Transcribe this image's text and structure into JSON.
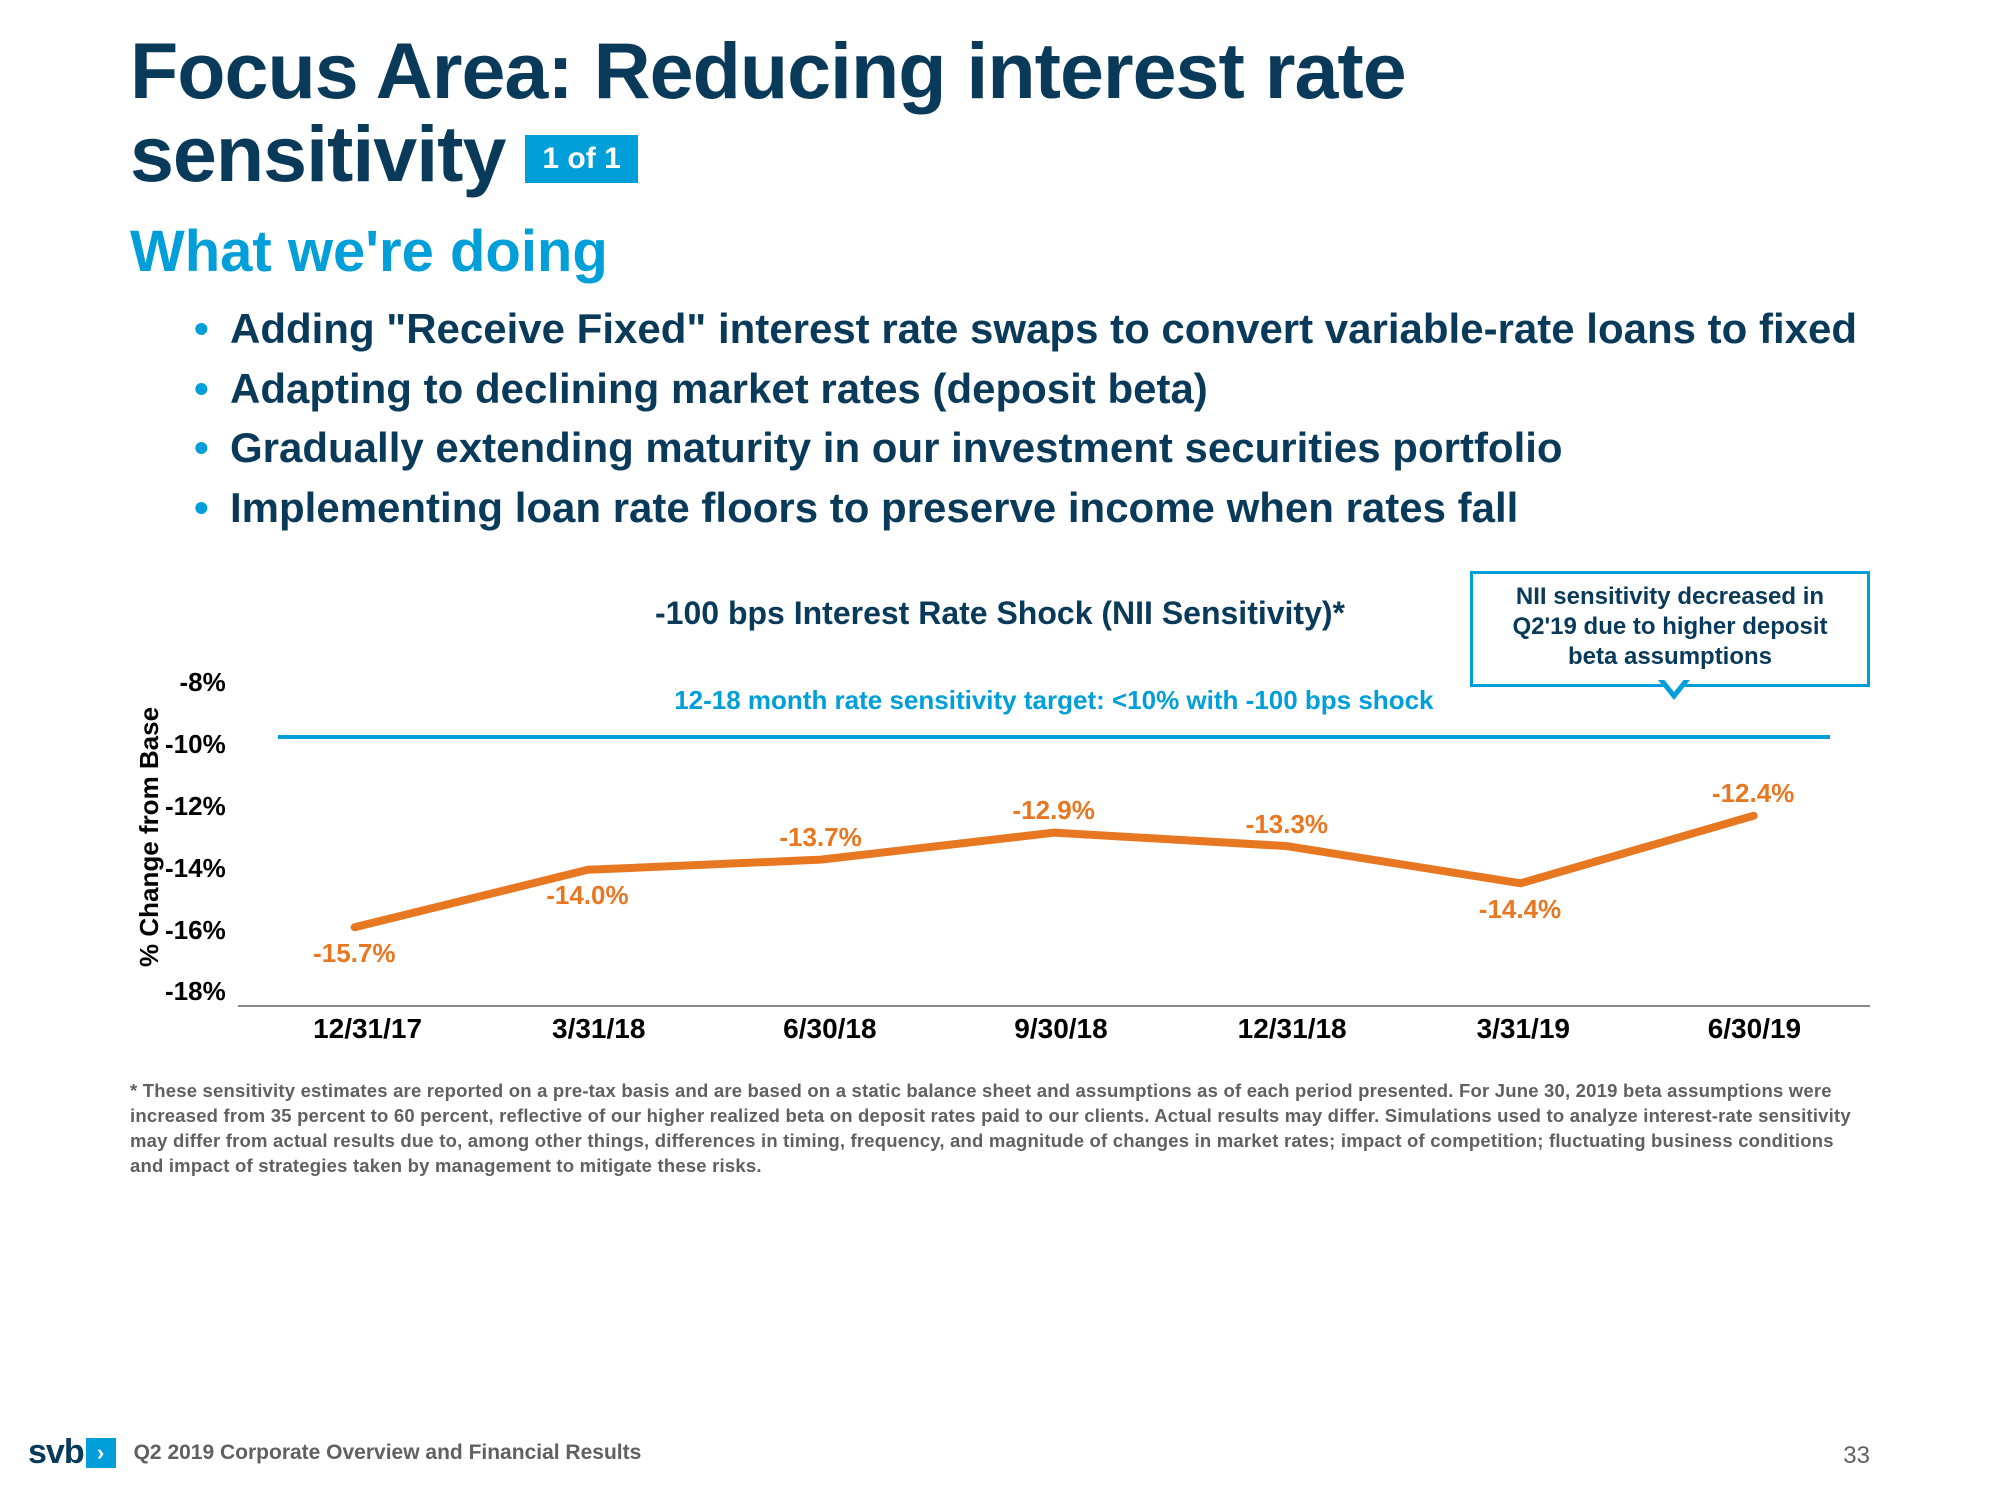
{
  "title_line1": "Focus Area: Reducing interest rate",
  "title_line2": "sensitivity",
  "badge": "1 of 1",
  "subtitle": "What we're doing",
  "bullets": [
    "Adding \"Receive Fixed\" interest rate swaps to convert variable-rate loans to fixed",
    "Adapting to declining market rates (deposit beta)",
    "Gradually extending maturity in our investment securities portfolio",
    "Implementing loan rate floors to preserve income when rates fall"
  ],
  "chart": {
    "title": "-100 bps Interest Rate Shock (NII Sensitivity)*",
    "callout": "NII sensitivity decreased in Q2'19 due to higher deposit beta assumptions",
    "ylabel": "% Change from Base",
    "yticks": [
      "-8%",
      "-10%",
      "-12%",
      "-14%",
      "-16%",
      "-18%"
    ],
    "ymin": -18,
    "ymax": -8,
    "target_text": "12-18 month rate sensitivity target: <10% with -100 bps shock",
    "target_value": -10,
    "xlabels": [
      "12/31/17",
      "3/31/18",
      "6/30/18",
      "9/30/18",
      "12/31/18",
      "3/31/19",
      "6/30/19"
    ],
    "values": [
      -15.7,
      -14.0,
      -13.7,
      -12.9,
      -13.3,
      -14.4,
      -12.4
    ],
    "data_labels": [
      "-15.7%",
      "-14.0%",
      "-13.7%",
      "-12.9%",
      "-13.3%",
      "-14.4%",
      "-12.4%"
    ],
    "line_color": "#e87722",
    "line_width": 8,
    "target_color": "#009fda",
    "label_below": [
      true,
      true,
      false,
      false,
      false,
      true,
      false
    ]
  },
  "footnote": "* These sensitivity estimates are reported on a pre-tax basis and are based on a static balance sheet and assumptions as of each period presented. For June 30, 2019 beta assumptions were increased from 35 percent to 60 percent, reflective of our higher realized beta on deposit rates paid to our clients. Actual results may differ.  Simulations used to analyze interest-rate sensitivity may differ from actual results due to, among other things, differences in timing, frequency, and magnitude of changes in market rates; impact of competition; fluctuating business conditions and impact of strategies taken by management to mitigate these risks.",
  "footer_text": "Q2 2019 Corporate Overview and Financial Results",
  "logo": "svb",
  "page_number": "33",
  "colors": {
    "navy": "#0a3a5a",
    "cyan": "#009fda",
    "orange": "#e87722",
    "gray": "#606060",
    "bg": "#ffffff"
  }
}
